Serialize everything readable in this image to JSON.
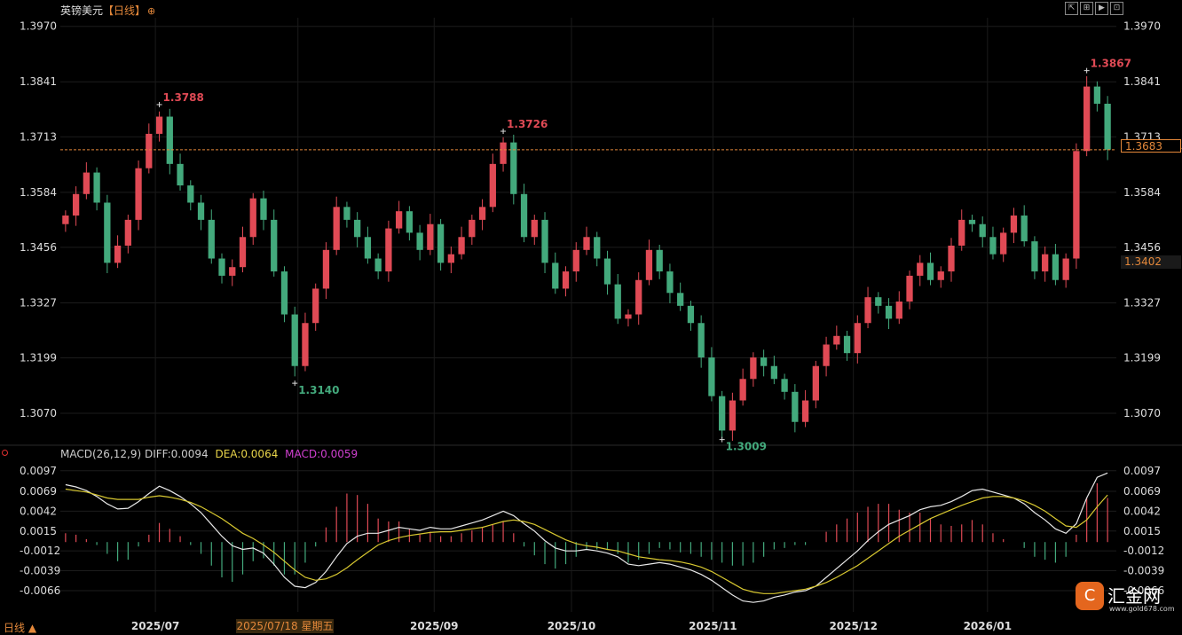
{
  "header": {
    "symbol": "英镑美元",
    "period": "【日线】",
    "zoom_glyph": "⊕"
  },
  "toolbar": [
    "⇱",
    "⊞",
    "▶",
    "⊡"
  ],
  "macd_header": {
    "name": "MACD(26,12,9)",
    "diff": "DIFF:0.0094",
    "dea": "DEA:0.0064",
    "macd": "MACD:0.0059"
  },
  "current_price_label": "1.3683",
  "crosshair_price_label": "1.3402",
  "crosshair_date_label": "2025/07/18 星期五",
  "bottom_tab": "日线 ▲",
  "logo": {
    "glyph": "C",
    "text": "汇金网",
    "url": "www.gold678.com"
  },
  "colors": {
    "up": "#e04a55",
    "down": "#43a97c",
    "diff": "#e8e8e8",
    "dea": "#d8c830",
    "dashed": "#e4883a"
  },
  "chart_data": [
    {
      "type": "candlestick",
      "y_ticks": [
        "1.3970",
        "1.3841",
        "1.3713",
        "1.3584",
        "1.3456",
        "1.3327",
        "1.3199",
        "1.3070"
      ],
      "ylim": [
        1.3,
        1.399
      ],
      "x_ticks": [
        "2025/07",
        "2025/08",
        "2025/09",
        "2025/10",
        "2025/11",
        "2025/12",
        "2026/01"
      ],
      "annotations": [
        {
          "label": "1.3788",
          "kind": "high",
          "index": 9
        },
        {
          "label": "1.3140",
          "kind": "low",
          "index": 22
        },
        {
          "label": "1.3726",
          "kind": "high",
          "index": 42
        },
        {
          "label": "1.3009",
          "kind": "low",
          "index": 63
        },
        {
          "label": "1.3867",
          "kind": "high",
          "index": 98
        }
      ],
      "current_price": 1.3683,
      "closes": [
        1.353,
        1.358,
        1.363,
        1.356,
        1.342,
        1.346,
        1.352,
        1.364,
        1.372,
        1.376,
        1.365,
        1.36,
        1.356,
        1.352,
        1.343,
        1.339,
        1.341,
        1.348,
        1.357,
        1.352,
        1.34,
        1.33,
        1.318,
        1.328,
        1.336,
        1.345,
        1.355,
        1.352,
        1.348,
        1.343,
        1.34,
        1.35,
        1.354,
        1.349,
        1.345,
        1.351,
        1.342,
        1.344,
        1.348,
        1.352,
        1.355,
        1.365,
        1.37,
        1.358,
        1.348,
        1.352,
        1.342,
        1.336,
        1.34,
        1.345,
        1.348,
        1.343,
        1.337,
        1.329,
        1.33,
        1.338,
        1.345,
        1.34,
        1.335,
        1.332,
        1.328,
        1.32,
        1.311,
        1.303,
        1.31,
        1.315,
        1.32,
        1.318,
        1.315,
        1.312,
        1.305,
        1.31,
        1.318,
        1.323,
        1.325,
        1.321,
        1.328,
        1.334,
        1.332,
        1.329,
        1.333,
        1.339,
        1.342,
        1.338,
        1.34,
        1.346,
        1.352,
        1.351,
        1.348,
        1.344,
        1.349,
        1.353,
        1.347,
        1.34,
        1.344,
        1.338,
        1.343,
        1.368,
        1.383,
        1.379,
        1.3683
      ],
      "macd": {
        "dif": [
          0.0078,
          0.0075,
          0.007,
          0.0062,
          0.0052,
          0.0045,
          0.0046,
          0.0055,
          0.0066,
          0.0076,
          0.007,
          0.0062,
          0.0052,
          0.004,
          0.0024,
          0.0008,
          -0.0005,
          -0.001,
          -0.0008,
          -0.0015,
          -0.003,
          -0.0048,
          -0.006,
          -0.0062,
          -0.0055,
          -0.004,
          -0.002,
          -0.0002,
          0.0008,
          0.0012,
          0.0012,
          0.0016,
          0.002,
          0.0018,
          0.0016,
          0.002,
          0.0018,
          0.0018,
          0.0022,
          0.0026,
          0.003,
          0.0036,
          0.0042,
          0.0036,
          0.0025,
          0.0015,
          0.0002,
          -0.0008,
          -0.0012,
          -0.0012,
          -0.001,
          -0.0012,
          -0.0015,
          -0.002,
          -0.003,
          -0.0032,
          -0.003,
          -0.0028,
          -0.003,
          -0.0034,
          -0.0038,
          -0.0044,
          -0.0052,
          -0.0062,
          -0.0072,
          -0.008,
          -0.0082,
          -0.008,
          -0.0075,
          -0.0072,
          -0.0068,
          -0.0066,
          -0.006,
          -0.0048,
          -0.0036,
          -0.0024,
          -0.0012,
          0.0002,
          0.0014,
          0.0024,
          0.003,
          0.0036,
          0.0044,
          0.0048,
          0.005,
          0.0055,
          0.0062,
          0.007,
          0.0072,
          0.0068,
          0.0064,
          0.006,
          0.0052,
          0.004,
          0.003,
          0.0018,
          0.0012,
          0.0025,
          0.006,
          0.0088,
          0.0094
        ],
        "dea": [
          0.0072,
          0.007,
          0.0068,
          0.0064,
          0.006,
          0.0058,
          0.0058,
          0.0058,
          0.0061,
          0.0063,
          0.0061,
          0.0058,
          0.0054,
          0.0048,
          0.004,
          0.0032,
          0.0022,
          0.0012,
          0.0005,
          -0.0004,
          -0.0014,
          -0.0026,
          -0.0038,
          -0.0048,
          -0.0052,
          -0.005,
          -0.0044,
          -0.0035,
          -0.0024,
          -0.0014,
          -0.0004,
          0.0002,
          0.0006,
          0.0009,
          0.0011,
          0.0013,
          0.0014,
          0.0014,
          0.0016,
          0.0018,
          0.002,
          0.0024,
          0.0028,
          0.003,
          0.0028,
          0.0024,
          0.0017,
          0.001,
          0.0003,
          -0.0002,
          -0.0005,
          -0.0007,
          -0.001,
          -0.0012,
          -0.0016,
          -0.002,
          -0.0022,
          -0.0024,
          -0.0025,
          -0.0027,
          -0.003,
          -0.0034,
          -0.004,
          -0.0048,
          -0.0056,
          -0.0064,
          -0.0068,
          -0.007,
          -0.007,
          -0.0068,
          -0.0066,
          -0.0064,
          -0.006,
          -0.0055,
          -0.0048,
          -0.004,
          -0.0032,
          -0.0022,
          -0.0012,
          -0.0002,
          0.0008,
          0.0016,
          0.0024,
          0.0032,
          0.0038,
          0.0044,
          0.005,
          0.0055,
          0.006,
          0.0062,
          0.0062,
          0.006,
          0.0056,
          0.005,
          0.0042,
          0.0032,
          0.0022,
          0.002,
          0.003,
          0.0048,
          0.0064
        ]
      },
      "macd_y_ticks": [
        "0.0097",
        "0.0069",
        "0.0042",
        "0.0015",
        "-0.0012",
        "-0.0039",
        "-0.0066"
      ],
      "macd_ylim": [
        -0.0095,
        0.011
      ]
    }
  ]
}
